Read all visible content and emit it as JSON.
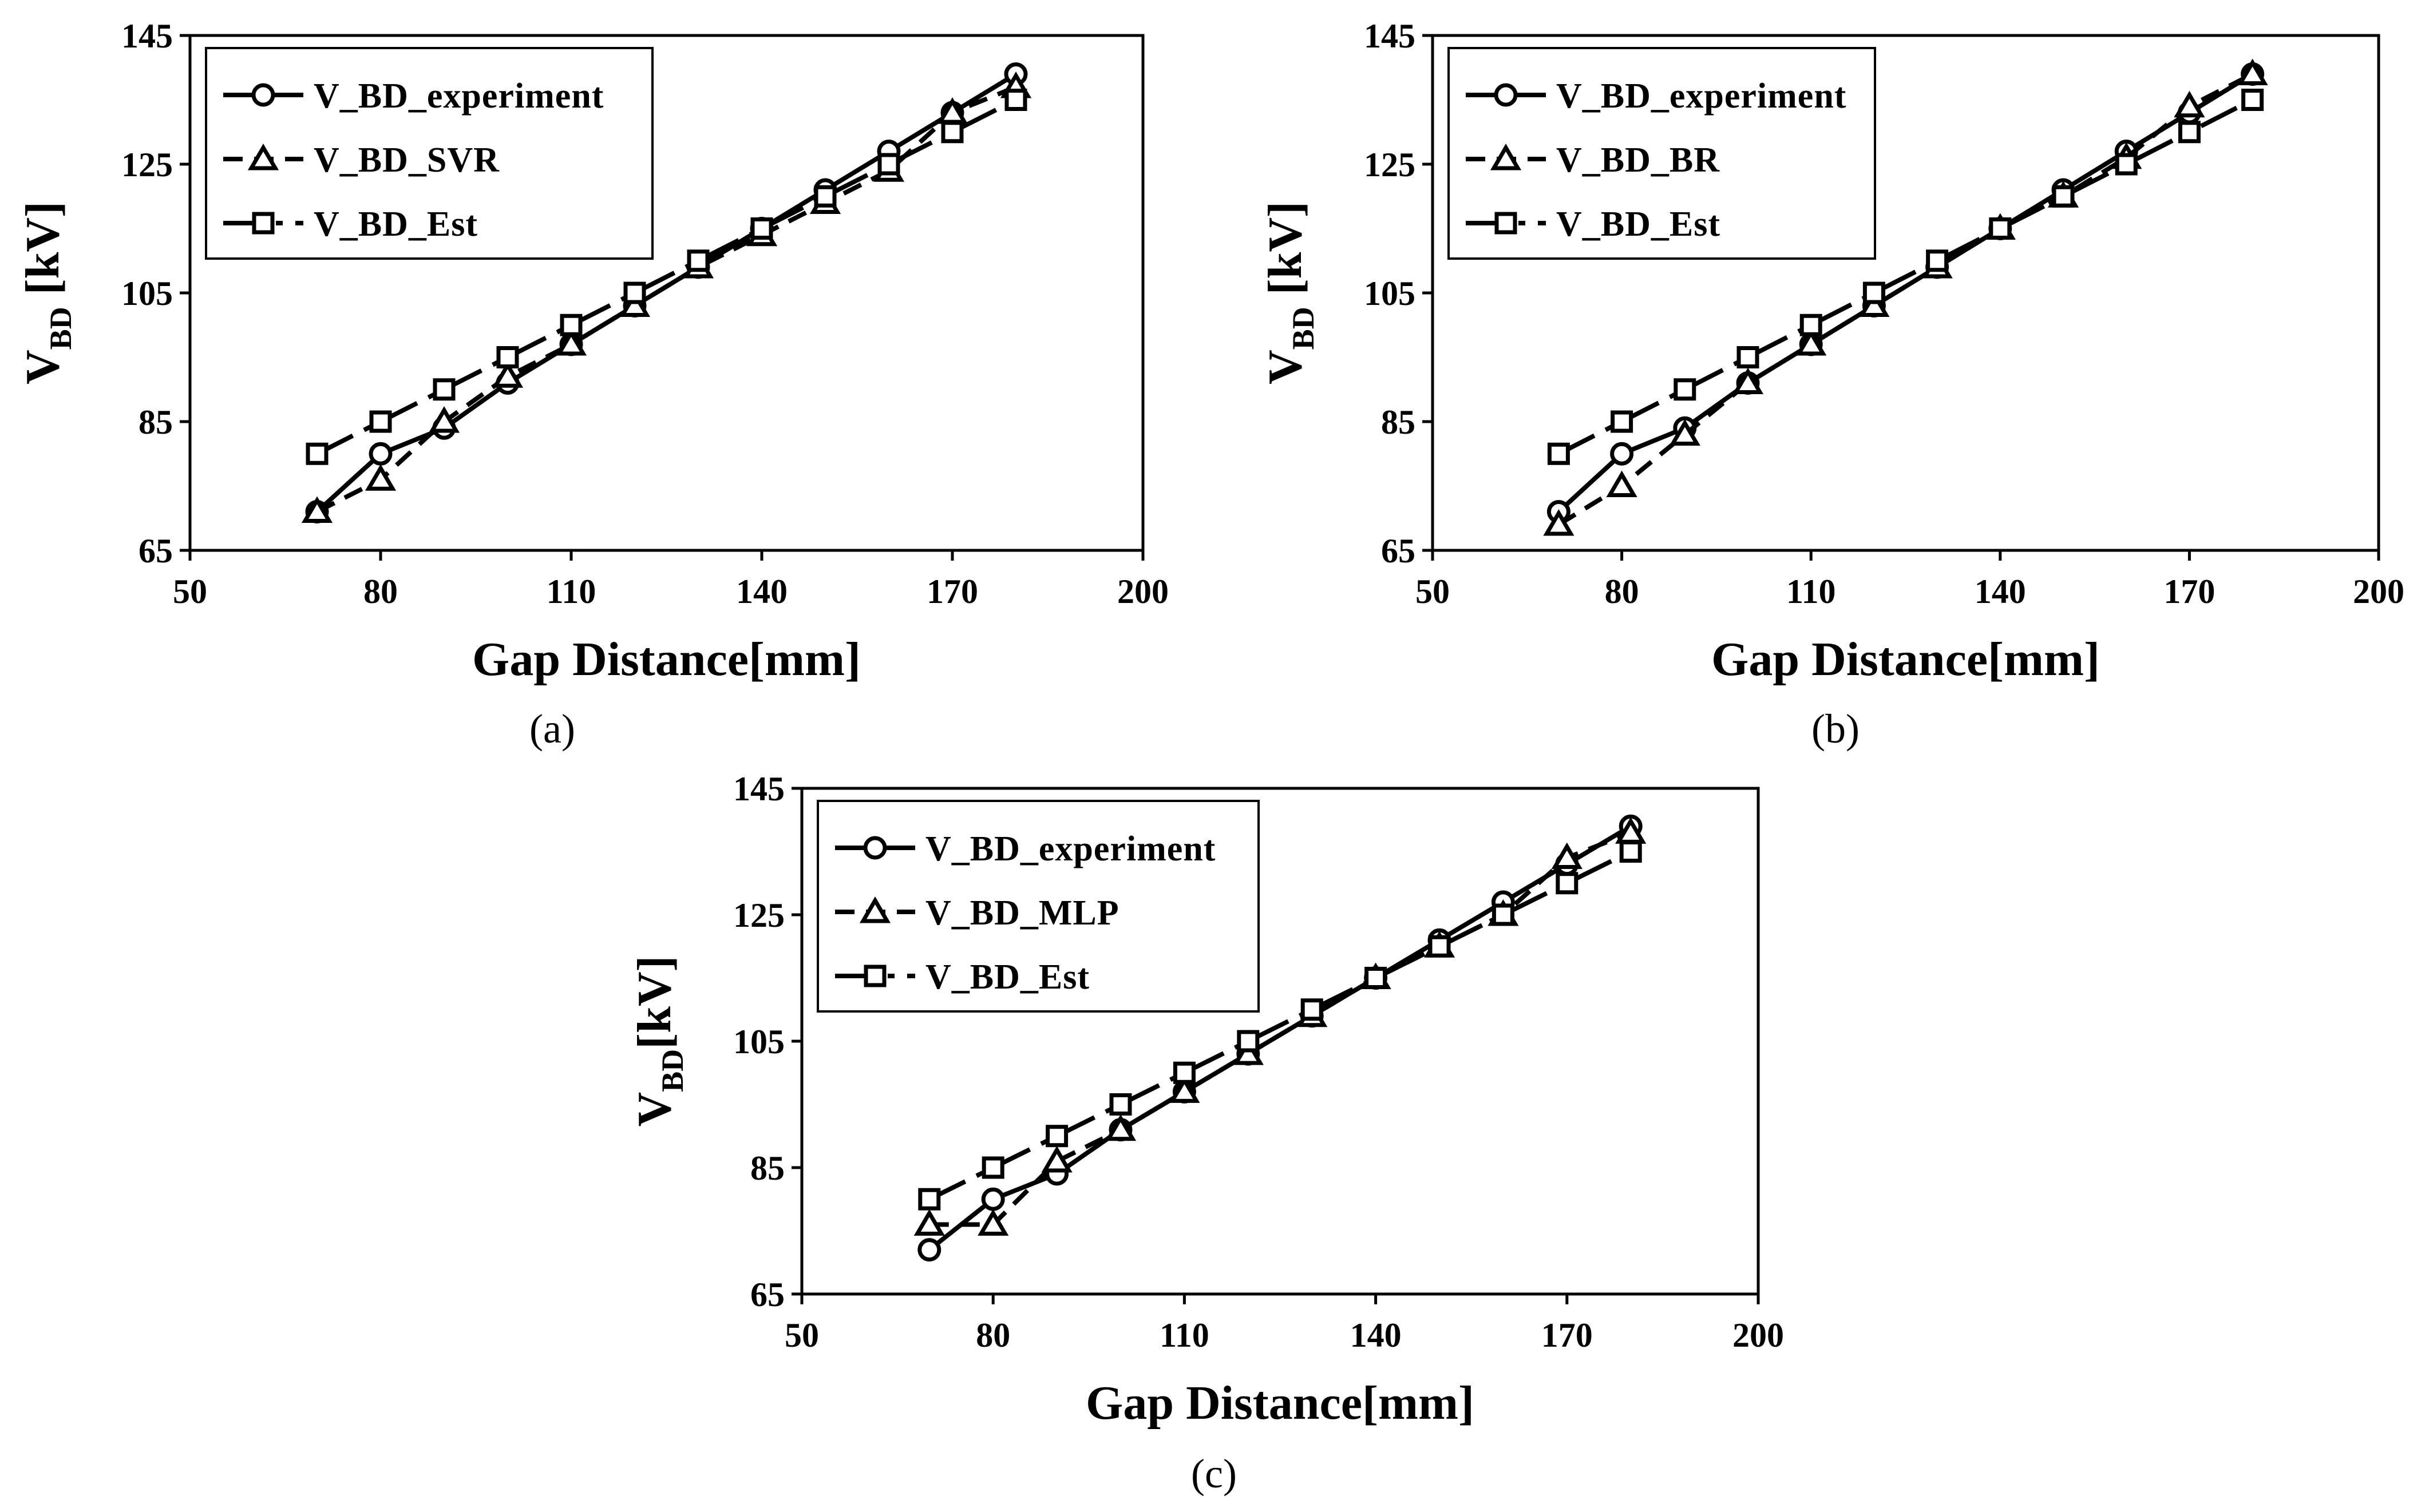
{
  "chart_data": [
    {
      "type": "line",
      "caption": "(a)",
      "xlabel": "Gap Distance[mm]",
      "ylabel_main": "V",
      "ylabel_sub": "BD",
      "ylabel_unit": " [kV]",
      "xlim": [
        50,
        200
      ],
      "ylim": [
        65,
        145
      ],
      "xticks": [
        50,
        80,
        110,
        140,
        170,
        200
      ],
      "yticks": [
        65,
        85,
        105,
        125,
        145
      ],
      "legend_position": "top-left",
      "series": [
        {
          "name": "V_BD_experiment",
          "marker": "circle",
          "dash": "solid",
          "legend_style": "—○—",
          "x": [
            70,
            80,
            90,
            100,
            110,
            120,
            130,
            140,
            150,
            160,
            170,
            180
          ],
          "y": [
            71,
            80,
            84,
            91,
            97,
            103,
            109,
            115,
            121,
            127,
            133,
            139
          ]
        },
        {
          "name": "V_BD_SVR",
          "marker": "triangle",
          "dash": "dashed",
          "legend_style": "- -△- -",
          "x": [
            70,
            80,
            90,
            100,
            110,
            120,
            130,
            140,
            150,
            160,
            170,
            180
          ],
          "y": [
            71,
            76,
            85,
            92,
            97,
            103,
            109,
            114,
            119,
            124,
            133,
            137
          ]
        },
        {
          "name": "V_BD_Est",
          "marker": "square",
          "dash": "dashdot",
          "legend_style": "—□ ·",
          "x": [
            70,
            80,
            90,
            100,
            110,
            120,
            130,
            140,
            150,
            160,
            170,
            180
          ],
          "y": [
            80,
            85,
            90,
            95,
            100,
            105,
            110,
            115,
            120,
            125,
            130,
            135
          ]
        }
      ]
    },
    {
      "type": "line",
      "caption": "(b)",
      "xlabel": "Gap Distance[mm]",
      "ylabel_main": "V",
      "ylabel_sub": "BD",
      "ylabel_unit": " [kV]",
      "xlim": [
        50,
        200
      ],
      "ylim": [
        65,
        145
      ],
      "xticks": [
        50,
        80,
        110,
        140,
        170,
        200
      ],
      "yticks": [
        65,
        85,
        105,
        125,
        145
      ],
      "legend_position": "top-left",
      "series": [
        {
          "name": "V_BD_experiment",
          "marker": "circle",
          "dash": "solid",
          "legend_style": "—○—",
          "x": [
            70,
            80,
            90,
            100,
            110,
            120,
            130,
            140,
            150,
            160,
            170,
            180
          ],
          "y": [
            71,
            80,
            84,
            91,
            97,
            103,
            109,
            115,
            121,
            127,
            133,
            139
          ]
        },
        {
          "name": "V_BD_BR",
          "marker": "triangle",
          "dash": "dashed",
          "legend_style": "- -△- -",
          "x": [
            70,
            80,
            90,
            100,
            110,
            120,
            130,
            140,
            150,
            160,
            170,
            180
          ],
          "y": [
            69,
            75,
            83,
            91,
            97,
            103,
            109,
            115,
            120,
            126,
            134,
            139
          ]
        },
        {
          "name": "V_BD_Est",
          "marker": "square",
          "dash": "dashdot",
          "legend_style": "—□ ·",
          "x": [
            70,
            80,
            90,
            100,
            110,
            120,
            130,
            140,
            150,
            160,
            170,
            180
          ],
          "y": [
            80,
            85,
            90,
            95,
            100,
            105,
            110,
            115,
            120,
            125,
            130,
            135
          ]
        }
      ]
    },
    {
      "type": "line",
      "caption": "(c)",
      "xlabel": "Gap Distance[mm]",
      "ylabel_main": "V",
      "ylabel_sub": "BD",
      "ylabel_unit": "[kV]",
      "xlim": [
        50,
        200
      ],
      "ylim": [
        65,
        145
      ],
      "xticks": [
        50,
        80,
        110,
        140,
        170,
        200
      ],
      "yticks": [
        65,
        85,
        105,
        125,
        145
      ],
      "legend_position": "top-left",
      "series": [
        {
          "name": "V_BD_experiment",
          "marker": "circle",
          "dash": "solid",
          "legend_style": "—○—",
          "x": [
            70,
            80,
            90,
            100,
            110,
            120,
            130,
            140,
            150,
            160,
            170,
            180
          ],
          "y": [
            72,
            80,
            84,
            91,
            97,
            103,
            109,
            115,
            121,
            127,
            133,
            139
          ]
        },
        {
          "name": "V_BD_MLP",
          "marker": "triangle",
          "dash": "dashed",
          "legend_style": "- -△- -",
          "x": [
            70,
            80,
            90,
            100,
            110,
            120,
            130,
            140,
            150,
            160,
            170,
            180
          ],
          "y": [
            76,
            76,
            86,
            91,
            97,
            103,
            109,
            115,
            120,
            125,
            134,
            138
          ]
        },
        {
          "name": "V_BD_Est",
          "marker": "square",
          "dash": "dashdot",
          "legend_style": "—□ ·",
          "x": [
            70,
            80,
            90,
            100,
            110,
            120,
            130,
            140,
            150,
            160,
            170,
            180
          ],
          "y": [
            80,
            85,
            90,
            95,
            100,
            105,
            110,
            115,
            120,
            125,
            130,
            135
          ]
        }
      ]
    }
  ]
}
